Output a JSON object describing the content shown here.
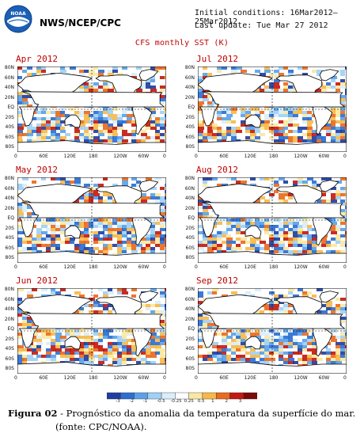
{
  "header": {
    "agency": "NWS/NCEP/CPC",
    "initial_conditions": "Initial conditions: 16Mar2012–25Mar2012",
    "last_update": "Last update: Tue Mar 27 2012",
    "main_title": "CFS monthly SST (K)",
    "logo_text": "NOAA"
  },
  "panels": [
    {
      "title": "Apr 2012"
    },
    {
      "title": "Jul 2012"
    },
    {
      "title": "May 2012"
    },
    {
      "title": "Aug 2012"
    },
    {
      "title": "Jun 2012"
    },
    {
      "title": "Sep 2012"
    }
  ],
  "lat_labels": [
    "80N",
    "60N",
    "40N",
    "20N",
    "EQ",
    "20S",
    "40S",
    "60S",
    "80S"
  ],
  "lon_labels": [
    "0",
    "60E",
    "120E",
    "180",
    "120W",
    "60W",
    "0"
  ],
  "colorbar": {
    "labels": [
      "-3",
      "-2",
      "-1",
      "-0.5",
      "-0.25",
      "0.25",
      "0.5",
      "1",
      "2",
      "3"
    ],
    "colors": [
      "#1f3f9f",
      "#2d6fd0",
      "#5aa2e8",
      "#9fd0f5",
      "#d9eefa",
      "#ffffff",
      "#fbe8a0",
      "#f7b84a",
      "#ea6a1e",
      "#c41a10",
      "#7a0a08"
    ]
  },
  "caption": {
    "label": "Figura 02",
    "text": " - Prognóstico da anomalia da temperatura da superfície do mar.",
    "source": "(fonte: CPC/NOAA)."
  }
}
